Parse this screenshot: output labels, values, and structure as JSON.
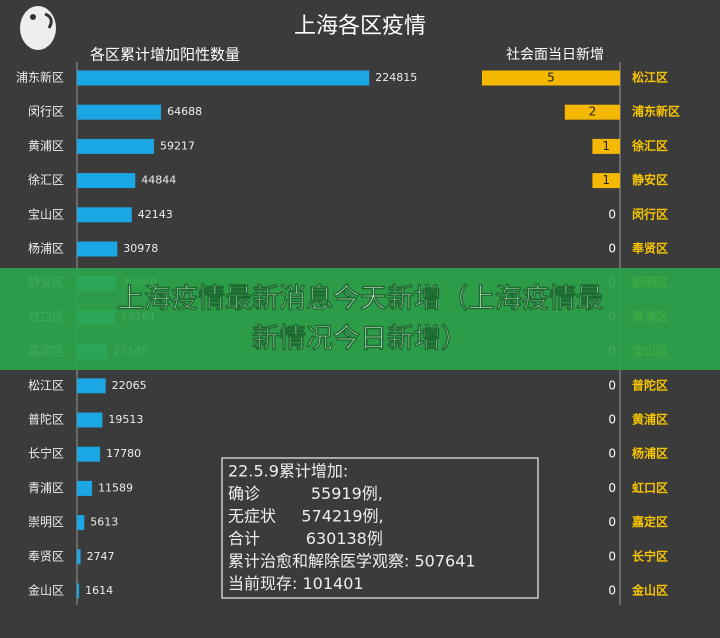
{
  "title": "上海各区疫情",
  "banner": [
    "上海疫情最新消息今天新增（上海疫情最",
    "新情况今日新增）"
  ],
  "note": [
    "22.5.9累计增加:",
    "确诊          55919例,",
    "无症状     574219例,",
    "合计         630138例",
    "累计治愈和解除医学观察: 507641",
    "当前现存: 101401"
  ],
  "chart_data": [
    {
      "type": "bar",
      "orientation": "horizontal",
      "title": "各区累计增加阳性数量",
      "color": "#1ba6e4",
      "categories": [
        "浦东新区",
        "闵行区",
        "黄浦区",
        "徐汇区",
        "宝山区",
        "杨浦区",
        "静安区",
        "虹口区",
        "嘉定区",
        "松江区",
        "普陀区",
        "长宁区",
        "青浦区",
        "崇明区",
        "奉贤区",
        "金山区"
      ],
      "values": [
        224815,
        64688,
        59217,
        44844,
        42143,
        30978,
        30040,
        29161,
        23145,
        22065,
        19513,
        17780,
        11589,
        5613,
        2747,
        1614
      ],
      "xlim": [
        0,
        250000
      ]
    },
    {
      "type": "bar",
      "orientation": "horizontal-reversed",
      "title": "社会面当日新增",
      "color": "#f5b800",
      "label_color": "#f5c400",
      "categories": [
        "松江区",
        "浦东新区",
        "徐汇区",
        "静安区",
        "闵行区",
        "奉贤区",
        "崇明区",
        "青浦区",
        "宝山区",
        "普陀区",
        "黄浦区",
        "杨浦区",
        "虹口区",
        "嘉定区",
        "长宁区",
        "金山区"
      ],
      "values": [
        5,
        2,
        1,
        1,
        0,
        0,
        0,
        0,
        0,
        0,
        0,
        0,
        0,
        0,
        0,
        0
      ],
      "xlim": [
        0,
        5
      ]
    }
  ]
}
